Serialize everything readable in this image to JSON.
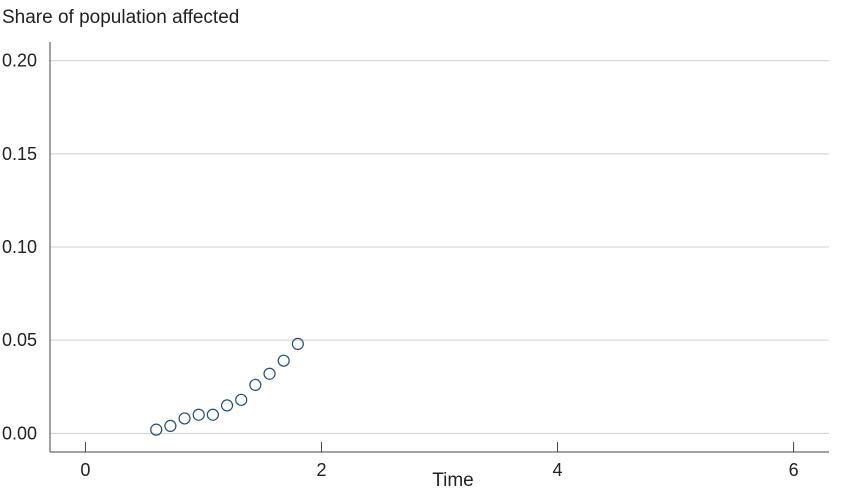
{
  "chart_data": {
    "type": "scatter",
    "title": "Share of population affected",
    "xlabel": "Time",
    "ylabel": "",
    "xlim": [
      -0.3,
      6.3
    ],
    "ylim": [
      -0.01,
      0.21
    ],
    "xticks": [
      0,
      2,
      4,
      6
    ],
    "xtick_labels": [
      "0",
      "2",
      "4",
      "6"
    ],
    "yticks": [
      0,
      0.05,
      0.1,
      0.15,
      0.2
    ],
    "ytick_labels": [
      "0.00",
      "0.05",
      "0.10",
      "0.15",
      "0.20"
    ],
    "grid": "horizontal",
    "marker": "hollow-circle",
    "colors": {
      "marker": "#1f4e79",
      "grid": "#d0d0d0",
      "axis": "#444444"
    },
    "x": [
      0.6,
      0.72,
      0.84,
      0.96,
      1.08,
      1.2,
      1.32,
      1.44,
      1.56,
      1.68,
      1.8
    ],
    "y": [
      0.002,
      0.004,
      0.008,
      0.01,
      0.01,
      0.015,
      0.018,
      0.026,
      0.032,
      0.039,
      0.048
    ]
  }
}
